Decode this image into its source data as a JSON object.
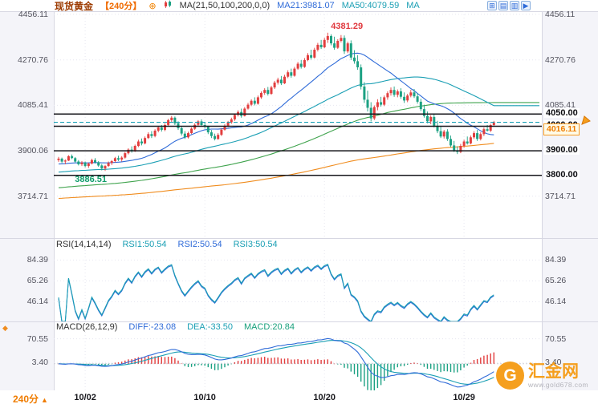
{
  "header": {
    "title": "现货黄金",
    "period": "【240分】",
    "add_icon": "⊕",
    "ma_settings": "MA(21,50,100,200,0,0)",
    "ma21": "MA21:3981.07",
    "ma50": "MA50:4079.59",
    "ma_more": "MA",
    "window_icons": [
      "⊞",
      "▤",
      "▥",
      "▶"
    ]
  },
  "rsi_header": {
    "name": "RSI(14,14,14)",
    "rsi1": "RSI1:50.54",
    "rsi2": "RSI2:50.54",
    "rsi3": "RSI3:50.54"
  },
  "macd_header": {
    "name": "MACD(26,12,9)",
    "diff": "DIFF:-23.08",
    "dea": "DEA:-33.50",
    "macd": "MACD:20.84"
  },
  "bottom": {
    "timeframe": "240分",
    "arrow": "▲"
  },
  "watermark": {
    "logo_letter": "G",
    "brand": "汇金网",
    "url": "www.gold678.com"
  },
  "chart_data": {
    "type": "candlestick",
    "title": "现货黄金 240分",
    "x_ticks": [
      {
        "label": "10/02",
        "index": 8
      },
      {
        "label": "10/10",
        "index": 44
      },
      {
        "label": "10/20",
        "index": 80
      },
      {
        "label": "10/29",
        "index": 122
      }
    ],
    "main": {
      "price_max": 4469,
      "price_min": 3544,
      "y_axis": [
        {
          "label": "4456.11",
          "value": 4456.11
        },
        {
          "label": "4270.76",
          "value": 4270.76
        },
        {
          "label": "4085.41",
          "value": 4085.41
        },
        {
          "label": "3900.06",
          "value": 3900.06
        },
        {
          "label": "3714.71",
          "value": 3714.71
        }
      ],
      "levels": [
        {
          "label": "4050.00",
          "value": 4050
        },
        {
          "label": "4000.00",
          "value": 4000
        },
        {
          "label": "3900.00",
          "value": 3900
        },
        {
          "label": "3800.00",
          "value": 3800
        }
      ],
      "last_price": 4016.11,
      "last_price_label": "4016.11",
      "annotations": [
        {
          "text": "4381.29",
          "type": "peak",
          "color": "#e0393e"
        },
        {
          "text": "3886.51",
          "type": "trough",
          "color": "#0f9d6a"
        }
      ],
      "up_color": "#e23e3e",
      "down_color": "#1ca183",
      "ma_lines": [
        {
          "name": "MA21",
          "period": 21,
          "seed": 3845,
          "color": "#2f6bd8",
          "extend": false
        },
        {
          "name": "MA50",
          "period": 50,
          "seed": 3812,
          "color": "#1a9fb4",
          "extend": true
        },
        {
          "name": "MA100",
          "period": 100,
          "seed": 3748,
          "color": "#3fa34d",
          "extend": true
        },
        {
          "name": "MA200",
          "period": 200,
          "seed": 3705,
          "color": "#f08c1e",
          "extend": false
        }
      ],
      "candles": [
        [
          3862,
          3875,
          3855,
          3868
        ],
        [
          3868,
          3872,
          3850,
          3856
        ],
        [
          3856,
          3865,
          3845,
          3860
        ],
        [
          3860,
          3882,
          3858,
          3878
        ],
        [
          3878,
          3885,
          3866,
          3870
        ],
        [
          3870,
          3874,
          3852,
          3856
        ],
        [
          3856,
          3862,
          3840,
          3845
        ],
        [
          3845,
          3858,
          3838,
          3852
        ],
        [
          3852,
          3856,
          3832,
          3838
        ],
        [
          3838,
          3852,
          3830,
          3848
        ],
        [
          3848,
          3868,
          3844,
          3862
        ],
        [
          3862,
          3870,
          3848,
          3853
        ],
        [
          3853,
          3858,
          3835,
          3840
        ],
        [
          3840,
          3846,
          3820,
          3828
        ],
        [
          3828,
          3842,
          3818,
          3838
        ],
        [
          3838,
          3856,
          3834,
          3850
        ],
        [
          3850,
          3862,
          3842,
          3858
        ],
        [
          3858,
          3875,
          3852,
          3870
        ],
        [
          3870,
          3880,
          3858,
          3864
        ],
        [
          3864,
          3878,
          3856,
          3872
        ],
        [
          3872,
          3895,
          3868,
          3890
        ],
        [
          3890,
          3910,
          3885,
          3905
        ],
        [
          3905,
          3918,
          3892,
          3898
        ],
        [
          3898,
          3925,
          3895,
          3920
        ],
        [
          3920,
          3945,
          3915,
          3938
        ],
        [
          3938,
          3950,
          3922,
          3930
        ],
        [
          3930,
          3958,
          3926,
          3952
        ],
        [
          3952,
          3975,
          3948,
          3968
        ],
        [
          3968,
          3980,
          3952,
          3960
        ],
        [
          3960,
          3988,
          3955,
          3982
        ],
        [
          3982,
          4000,
          3975,
          3995
        ],
        [
          3995,
          4005,
          3978,
          3985
        ],
        [
          3985,
          4012,
          3980,
          4005
        ],
        [
          4005,
          4030,
          4000,
          4025
        ],
        [
          4025,
          4042,
          4015,
          4035
        ],
        [
          4035,
          4040,
          4005,
          4012
        ],
        [
          4012,
          4020,
          3985,
          3992
        ],
        [
          3992,
          4000,
          3962,
          3970
        ],
        [
          3970,
          3980,
          3948,
          3955
        ],
        [
          3955,
          3978,
          3950,
          3972
        ],
        [
          3972,
          3995,
          3968,
          3990
        ],
        [
          3990,
          4012,
          3985,
          4006
        ],
        [
          4006,
          4025,
          4000,
          4020
        ],
        [
          4020,
          4028,
          3998,
          4005
        ],
        [
          4005,
          4018,
          3990,
          3998
        ],
        [
          3998,
          4002,
          3968,
          3975
        ],
        [
          3975,
          3985,
          3952,
          3960
        ],
        [
          3960,
          3970,
          3942,
          3948
        ],
        [
          3948,
          3972,
          3945,
          3965
        ],
        [
          3965,
          3992,
          3960,
          3986
        ],
        [
          3986,
          4008,
          3982,
          4002
        ],
        [
          4002,
          4022,
          3996,
          4016
        ],
        [
          4016,
          4035,
          4010,
          4028
        ],
        [
          4028,
          4052,
          4022,
          4046
        ],
        [
          4046,
          4065,
          4040,
          4058
        ],
        [
          4058,
          4072,
          4035,
          4042
        ],
        [
          4042,
          4078,
          4040,
          4072
        ],
        [
          4072,
          4095,
          4068,
          4088
        ],
        [
          4088,
          4110,
          4082,
          4104
        ],
        [
          4104,
          4118,
          4085,
          4092
        ],
        [
          4092,
          4125,
          4088,
          4118
        ],
        [
          4118,
          4142,
          4112,
          4136
        ],
        [
          4136,
          4155,
          4128,
          4148
        ],
        [
          4148,
          4160,
          4125,
          4132
        ],
        [
          4132,
          4165,
          4128,
          4158
        ],
        [
          4158,
          4185,
          4152,
          4178
        ],
        [
          4178,
          4198,
          4170,
          4190
        ],
        [
          4190,
          4205,
          4168,
          4175
        ],
        [
          4175,
          4210,
          4172,
          4202
        ],
        [
          4202,
          4228,
          4196,
          4220
        ],
        [
          4220,
          4235,
          4198,
          4206
        ],
        [
          4206,
          4242,
          4202,
          4235
        ],
        [
          4235,
          4262,
          4230,
          4255
        ],
        [
          4255,
          4270,
          4235,
          4242
        ],
        [
          4242,
          4278,
          4238,
          4270
        ],
        [
          4270,
          4298,
          4265,
          4290
        ],
        [
          4290,
          4312,
          4272,
          4280
        ],
        [
          4280,
          4320,
          4276,
          4312
        ],
        [
          4312,
          4340,
          4305,
          4332
        ],
        [
          4332,
          4352,
          4315,
          4322
        ],
        [
          4322,
          4360,
          4318,
          4352
        ],
        [
          4352,
          4381.29,
          4340,
          4368
        ],
        [
          4368,
          4375,
          4330,
          4338
        ],
        [
          4338,
          4365,
          4312,
          4320
        ],
        [
          4320,
          4355,
          4315,
          4348
        ],
        [
          4348,
          4372,
          4342,
          4360
        ],
        [
          4360,
          4370,
          4295,
          4305
        ],
        [
          4305,
          4345,
          4298,
          4338
        ],
        [
          4338,
          4350,
          4270,
          4280
        ],
        [
          4280,
          4310,
          4255,
          4265
        ],
        [
          4265,
          4290,
          4230,
          4240
        ],
        [
          4240,
          4252,
          4150,
          4162
        ],
        [
          4162,
          4180,
          4095,
          4108
        ],
        [
          4108,
          4145,
          4060,
          4075
        ],
        [
          4075,
          4098,
          4020,
          4032
        ],
        [
          4032,
          4085,
          4025,
          4078
        ],
        [
          4078,
          4110,
          4065,
          4098
        ],
        [
          4098,
          4120,
          4080,
          4088
        ],
        [
          4088,
          4125,
          4082,
          4118
        ],
        [
          4118,
          4142,
          4108,
          4135
        ],
        [
          4135,
          4158,
          4125,
          4148
        ],
        [
          4148,
          4162,
          4120,
          4128
        ],
        [
          4128,
          4150,
          4118,
          4142
        ],
        [
          4142,
          4155,
          4112,
          4120
        ],
        [
          4120,
          4138,
          4095,
          4105
        ],
        [
          4105,
          4132,
          4098,
          4125
        ],
        [
          4125,
          4148,
          4118,
          4138
        ],
        [
          4138,
          4152,
          4115,
          4122
        ],
        [
          4122,
          4135,
          4092,
          4100
        ],
        [
          4100,
          4112,
          4062,
          4070
        ],
        [
          4070,
          4088,
          4035,
          4042
        ],
        [
          4042,
          4060,
          4012,
          4020
        ],
        [
          4020,
          4045,
          4008,
          4038
        ],
        [
          4038,
          4048,
          3995,
          4002
        ],
        [
          4002,
          4022,
          3972,
          3980
        ],
        [
          3980,
          3998,
          3952,
          3958
        ],
        [
          3958,
          3985,
          3950,
          3978
        ],
        [
          3978,
          3988,
          3940,
          3948
        ],
        [
          3948,
          3962,
          3915,
          3922
        ],
        [
          3922,
          3940,
          3895,
          3902
        ],
        [
          3902,
          3918,
          3886.51,
          3895
        ],
        [
          3895,
          3928,
          3890,
          3920
        ],
        [
          3920,
          3945,
          3912,
          3938
        ],
        [
          3938,
          3958,
          3925,
          3930
        ],
        [
          3930,
          3962,
          3926,
          3955
        ],
        [
          3955,
          3980,
          3948,
          3972
        ],
        [
          3972,
          3985,
          3940,
          3948
        ],
        [
          3948,
          3975,
          3942,
          3968
        ],
        [
          3968,
          3995,
          3960,
          3988
        ],
        [
          3988,
          4005,
          3978,
          3982
        ],
        [
          3982,
          4010,
          3976,
          4005
        ],
        [
          4005,
          4022,
          3998,
          4016.11
        ]
      ]
    },
    "rsi": {
      "periods": [
        14,
        14,
        14
      ],
      "range": [
        28,
        93.5
      ],
      "y_axis": [
        {
          "label": "84.39",
          "value": 84.39
        },
        {
          "label": "65.26",
          "value": 65.26
        },
        {
          "label": "46.14",
          "value": 46.14
        }
      ],
      "line_colors": {
        "rsi1": "#1a9fb4",
        "rsi2": "#2f6bd8",
        "rsi3": "#1a9fb4"
      }
    },
    "macd": {
      "fast": 12,
      "slow": 26,
      "signal": 9,
      "range": [
        -75,
        90
      ],
      "y_axis": [
        {
          "label": "70.55",
          "value": 70.55
        },
        {
          "label": "3.40",
          "value": 3.4
        }
      ],
      "colors": {
        "diff": "#2f6bd8",
        "dea": "#1a9fb4",
        "hist_up": "#e23e3e",
        "hist_down": "#1ca183"
      }
    }
  }
}
